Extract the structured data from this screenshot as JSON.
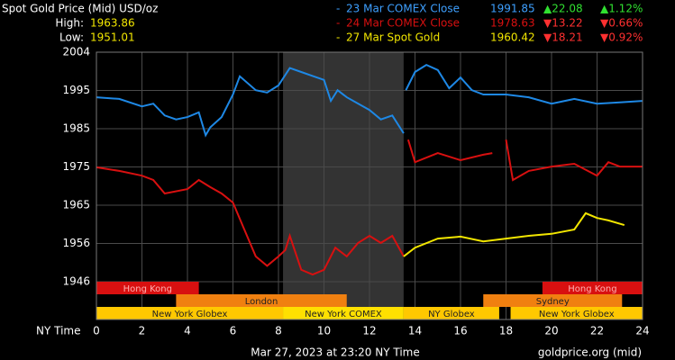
{
  "chart_data": {
    "type": "line",
    "title": "Spot Gold Price (Mid) USD/oz",
    "high_label": "High:",
    "high": 1963.86,
    "low_label": "Low:",
    "low": 1951.01,
    "x_label": "NY Time",
    "footer_left": "Mar 27, 2023 at 23:20 NY Time",
    "footer_right": "goldprice.org (mid)",
    "xlim": [
      0,
      24
    ],
    "xticks": [
      0,
      2,
      4,
      6,
      8,
      10,
      12,
      14,
      16,
      18,
      20,
      22,
      24
    ],
    "ylim": [
      1936.45,
      2004
    ],
    "yticks": [
      {
        "value": 1946,
        "label": "1946"
      },
      {
        "value": 1955.67,
        "label": "1956"
      },
      {
        "value": 1965.33,
        "label": "1965"
      },
      {
        "value": 1975,
        "label": "1975"
      },
      {
        "value": 1984.67,
        "label": "1985"
      },
      {
        "value": 1994.33,
        "label": "1995"
      },
      {
        "value": 2004,
        "label": "2004"
      }
    ],
    "grid": true,
    "shaded_range": [
      8.2,
      13.5
    ],
    "series": [
      {
        "name": "23 Mar COMEX Close",
        "color": "#1e88e5",
        "price": 1991.85,
        "change": 22.08,
        "change_label": "▲22.08",
        "pct": 1.12,
        "pct_label": "▲1.12%",
        "x": [
          0,
          1,
          2,
          2.5,
          3,
          3.5,
          4,
          4.5,
          4.8,
          5,
          5.5,
          6,
          6.3,
          7,
          7.5,
          8,
          8.5,
          9,
          9.5,
          10,
          10.3,
          10.6,
          11,
          12,
          12.5,
          13,
          13.5,
          null,
          13.6,
          14,
          14.5,
          15,
          15.5,
          16,
          16.5,
          17,
          18,
          19,
          20,
          21,
          22,
          23,
          24
        ],
        "values": [
          1992.6,
          1992.2,
          1990.3,
          1991,
          1988,
          1987,
          1987.6,
          1988.8,
          1983,
          1985,
          1987.6,
          1993.3,
          1997.9,
          1994.4,
          1993.8,
          1995.6,
          2000,
          1999,
          1998,
          1997,
          1991.7,
          1994.4,
          1992.6,
          1989.4,
          1987,
          1988,
          1983.5,
          null,
          1994.4,
          1999,
          2000.8,
          1999.5,
          1994.9,
          1997.6,
          1994.4,
          1993.3,
          1993.3,
          1992.6,
          1991,
          1992.2,
          1991,
          1991.3,
          1991.7
        ]
      },
      {
        "name": "24 Mar COMEX Close",
        "color": "#d81010",
        "price": 1978.63,
        "change": -13.22,
        "change_label": "▼13.22",
        "pct": -0.66,
        "pct_label": "▼0.66%",
        "x": [
          0,
          1,
          2,
          2.5,
          3,
          4,
          4.5,
          5,
          5.5,
          6,
          6.5,
          7,
          7.5,
          8,
          8.3,
          8.5,
          9,
          9.5,
          10,
          10.5,
          11,
          11.5,
          12,
          12.5,
          13,
          13.5,
          null,
          13.7,
          14,
          15,
          16,
          17,
          17.4,
          null,
          18,
          18.3,
          19,
          20,
          21,
          22,
          22.5,
          23,
          24
        ],
        "values": [
          1974.9,
          1974,
          1972.8,
          1971.7,
          1968.3,
          1969.4,
          1971.7,
          1969.9,
          1968.3,
          1966,
          1959.2,
          1952.4,
          1950,
          1952.4,
          1954,
          1957.6,
          1949,
          1947.8,
          1949,
          1954.6,
          1952.4,
          1955.8,
          1957.6,
          1955.8,
          1957.6,
          1952.4,
          null,
          1981.9,
          1976.2,
          1978.5,
          1976.7,
          1978.1,
          1978.5,
          null,
          1981.9,
          1971.7,
          1974,
          1975.1,
          1975.8,
          1972.8,
          1976.2,
          1975.1,
          1975.1
        ]
      },
      {
        "name": "27 Mar Spot Gold",
        "color": "#f2e600",
        "price": 1960.42,
        "change": -18.21,
        "change_label": "▼18.21",
        "pct": -0.92,
        "pct_label": "▼0.92%",
        "x": [
          13.5,
          14,
          15,
          16,
          17,
          18,
          19,
          20,
          21,
          21.5,
          22,
          22.5,
          23.2
        ],
        "values": [
          1952.4,
          1954.6,
          1956.9,
          1957.4,
          1956.2,
          1956.9,
          1957.6,
          1958.1,
          1959.2,
          1963.3,
          1962.1,
          1961.5,
          1960.3
        ]
      }
    ],
    "sessions": [
      {
        "name": "Hong Kong",
        "start": 0,
        "end": 4.5,
        "row": 0,
        "color": "#d81010"
      },
      {
        "name": "Hong Kong",
        "start": 19.6,
        "end": 24,
        "row": 0,
        "color": "#d81010"
      },
      {
        "name": "London",
        "start": 3.5,
        "end": 11,
        "row": 1,
        "color": "#f08010"
      },
      {
        "name": "Sydney",
        "start": 17,
        "end": 23.1,
        "row": 1,
        "color": "#f08010"
      },
      {
        "name": "New York Globex",
        "start": 0,
        "end": 8.2,
        "row": 2,
        "color": "#ffc800"
      },
      {
        "name": "New York COMEX",
        "start": 8.2,
        "end": 13.5,
        "row": 2,
        "color": "#ffe000"
      },
      {
        "name": "NY Globex",
        "start": 13.5,
        "end": 17.7,
        "row": 2,
        "color": "#ffc800"
      },
      {
        "name": "New York Globex",
        "start": 18.2,
        "end": 24,
        "row": 2,
        "color": "#ffc800"
      }
    ]
  }
}
